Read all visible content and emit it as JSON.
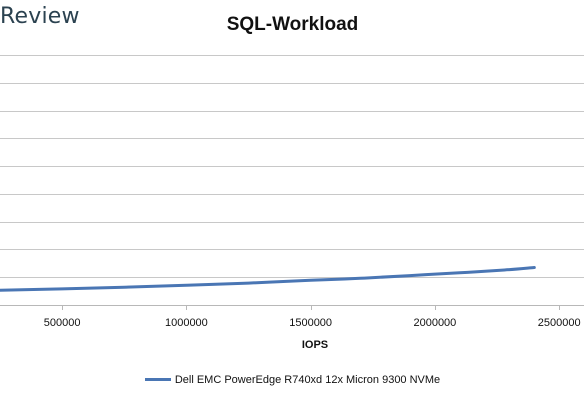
{
  "brand": {
    "text": "Review"
  },
  "chart_data": {
    "type": "line",
    "title": "SQL-Workload",
    "xlabel": "IOPS",
    "ylabel": "",
    "xlim": [
      250000,
      2600000
    ],
    "x_ticks": [
      500000,
      1000000,
      1500000,
      2000000,
      2500000
    ],
    "x_tick_labels": [
      "500000",
      "1000000",
      "1500000",
      "2000000",
      "2500000"
    ],
    "y_gridlines": 9,
    "grid": true,
    "legend_position": "bottom",
    "series": [
      {
        "name": "Dell EMC PowerEdge R740xd 12x Micron 9300 NVMe",
        "color": "#4a76b4",
        "points": [
          [
            250000,
            0.53
          ],
          [
            500000,
            0.58
          ],
          [
            750000,
            0.64
          ],
          [
            1000000,
            0.71
          ],
          [
            1250000,
            0.79
          ],
          [
            1500000,
            0.89
          ],
          [
            1700000,
            0.96
          ],
          [
            1900000,
            1.06
          ],
          [
            2100000,
            1.16
          ],
          [
            2280000,
            1.26
          ],
          [
            2400000,
            1.35
          ]
        ]
      }
    ]
  }
}
